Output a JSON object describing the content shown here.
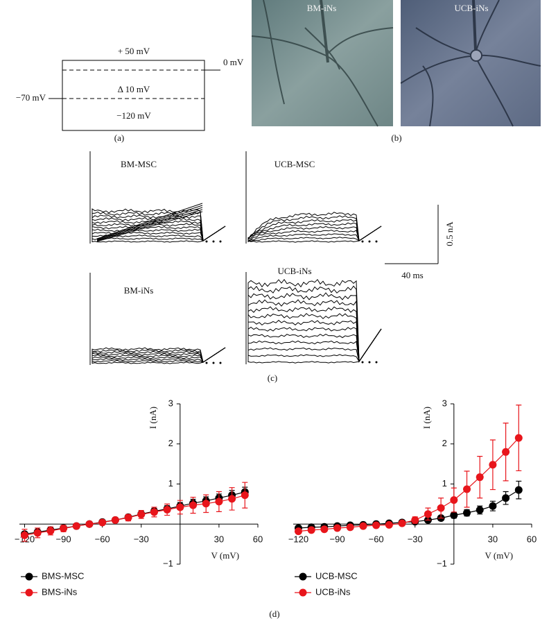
{
  "panel_a": {
    "label": "(a)",
    "top": "+ 50 mV",
    "zero": "0 mV",
    "step": "Δ 10 mV",
    "hold": "−70 mV",
    "bottom": "−120 mV"
  },
  "panel_b": {
    "label": "(b)",
    "images": [
      "BM-iNs",
      "UCB-iNs"
    ]
  },
  "panel_c": {
    "label": "(c)",
    "traces": [
      "BM-MSC",
      "UCB-MSC",
      "BM-iNs",
      "UCB-iNs"
    ],
    "scale_current": "0.5 nA",
    "scale_time": "40 ms"
  },
  "panel_d": {
    "label": "(d)"
  },
  "chart_data": [
    {
      "type": "line",
      "xlabel": "V (mV)",
      "ylabel": "I (nA)",
      "x": [
        -120,
        -110,
        -100,
        -90,
        -80,
        -70,
        -60,
        -50,
        -40,
        -30,
        -20,
        -10,
        0,
        10,
        20,
        30,
        40,
        50
      ],
      "xlim": [
        -124,
        60
      ],
      "ylim": [
        -1,
        3
      ],
      "xticks": [
        {
          "value": -120,
          "label": "−120"
        },
        {
          "value": -90,
          "label": "−90"
        },
        {
          "value": -60,
          "label": "−60"
        },
        {
          "value": -30,
          "label": "−30"
        },
        30,
        60
      ],
      "yticks": [
        {
          "value": -1,
          "label": "−1"
        },
        1,
        2,
        3
      ],
      "series": [
        {
          "name": "BMS-MSC",
          "color": "#000000",
          "values": [
            -0.25,
            -0.2,
            -0.15,
            -0.1,
            -0.05,
            0,
            0.05,
            0.1,
            0.17,
            0.25,
            0.32,
            0.38,
            0.45,
            0.52,
            0.58,
            0.65,
            0.72,
            0.8
          ],
          "errors": [
            0.05,
            0.05,
            0.05,
            0.04,
            0.04,
            0.03,
            0.03,
            0.04,
            0.05,
            0.06,
            0.07,
            0.08,
            0.09,
            0.1,
            0.1,
            0.1,
            0.12,
            0.12
          ]
        },
        {
          "name": "BMS-iNs",
          "color": "#e8151b",
          "values": [
            -0.28,
            -0.22,
            -0.17,
            -0.11,
            -0.05,
            0,
            0.04,
            0.1,
            0.16,
            0.24,
            0.3,
            0.36,
            0.42,
            0.47,
            0.51,
            0.56,
            0.63,
            0.72
          ],
          "errors": [
            0.15,
            0.12,
            0.1,
            0.08,
            0.06,
            0.05,
            0.05,
            0.06,
            0.08,
            0.1,
            0.12,
            0.14,
            0.17,
            0.2,
            0.22,
            0.25,
            0.28,
            0.32
          ]
        }
      ]
    },
    {
      "type": "line",
      "xlabel": "V (mV)",
      "ylabel": "I (nA)",
      "x": [
        -120,
        -110,
        -100,
        -90,
        -80,
        -70,
        -60,
        -50,
        -40,
        -30,
        -20,
        -10,
        0,
        10,
        20,
        30,
        40,
        50
      ],
      "xlim": [
        -124,
        60
      ],
      "ylim": [
        -1,
        3
      ],
      "xticks": [
        {
          "value": -120,
          "label": "−120"
        },
        {
          "value": -90,
          "label": "−90"
        },
        {
          "value": -60,
          "label": "−60"
        },
        {
          "value": -30,
          "label": "−30"
        },
        30,
        60
      ],
      "yticks": [
        {
          "value": -1,
          "label": "−1"
        },
        1,
        2,
        3
      ],
      "series": [
        {
          "name": "UCB-MSC",
          "color": "#000000",
          "values": [
            -0.1,
            -0.08,
            -0.07,
            -0.05,
            -0.03,
            -0.02,
            0,
            0.02,
            0.04,
            0.06,
            0.1,
            0.15,
            0.22,
            0.28,
            0.35,
            0.45,
            0.65,
            0.85
          ],
          "errors": [
            0.03,
            0.03,
            0.03,
            0.03,
            0.03,
            0.03,
            0.03,
            0.03,
            0.03,
            0.04,
            0.05,
            0.06,
            0.07,
            0.08,
            0.1,
            0.12,
            0.16,
            0.22
          ]
        },
        {
          "name": "UCB-iNs",
          "color": "#e8151b",
          "values": [
            -0.18,
            -0.15,
            -0.13,
            -0.1,
            -0.08,
            -0.05,
            -0.03,
            -0.02,
            0.02,
            0.1,
            0.25,
            0.4,
            0.6,
            0.87,
            1.17,
            1.48,
            1.8,
            2.15
          ],
          "errors": [
            0.04,
            0.04,
            0.04,
            0.04,
            0.04,
            0.04,
            0.04,
            0.04,
            0.05,
            0.08,
            0.15,
            0.25,
            0.3,
            0.45,
            0.52,
            0.62,
            0.72,
            0.82
          ]
        }
      ]
    }
  ]
}
